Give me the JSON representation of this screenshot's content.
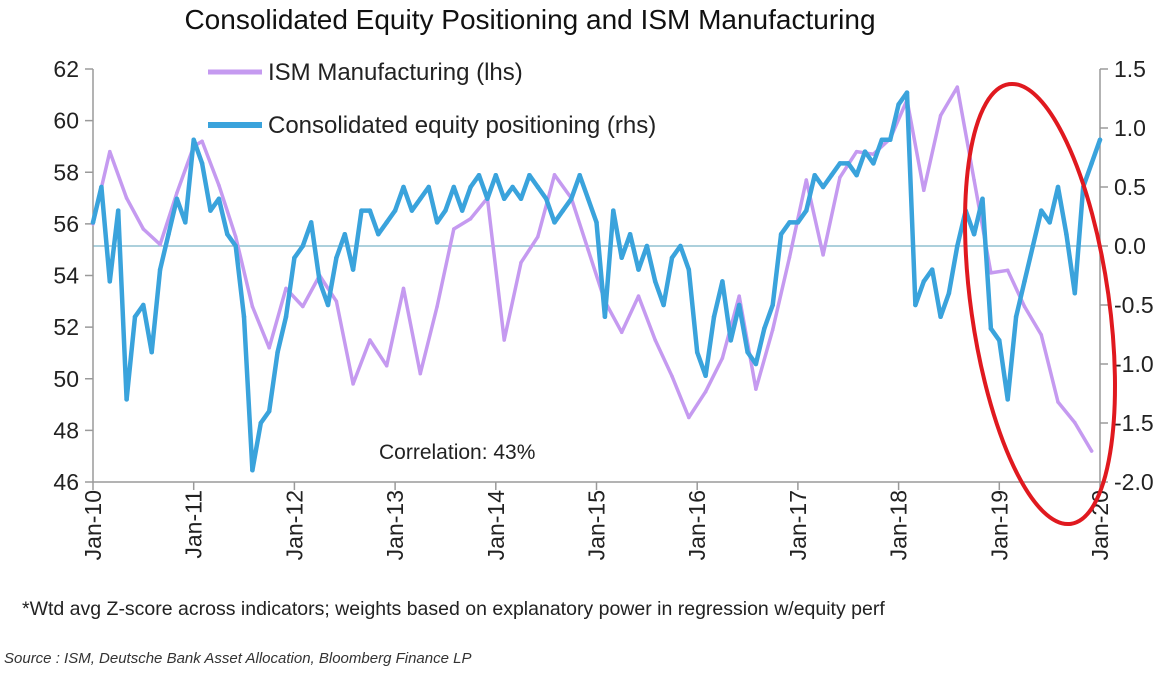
{
  "chart_data": {
    "type": "line",
    "title": "Consolidated Equity Positioning and ISM Manufacturing",
    "left_axis": {
      "min": 46,
      "max": 62,
      "ticks": [
        "62",
        "60",
        "58",
        "56",
        "54",
        "52",
        "50",
        "48",
        "46"
      ]
    },
    "right_axis": {
      "min": -2.0,
      "max": 1.5,
      "ticks": [
        "1.5",
        "1.0",
        "0.5",
        "0.0",
        "-0.5",
        "-1.0",
        "-1.5",
        "-2.0"
      ]
    },
    "x_ticks": [
      "Jan-10",
      "Jan-11",
      "Jan-12",
      "Jan-13",
      "Jan-14",
      "Jan-15",
      "Jan-16",
      "Jan-17",
      "Jan-18",
      "Jan-19",
      "Jan-20"
    ],
    "x_range": [
      "2010-01",
      "2020-01"
    ],
    "zero_line_rhs": 0.0,
    "legend_position": "top-left",
    "grid": false,
    "colors": {
      "ism": "#c59af0",
      "positioning": "#3aa3dc",
      "zero_line": "#7ab4c6",
      "highlight": "#e0191f",
      "axis": "#9a9a9a"
    },
    "annotation": "Correlation: 43%",
    "highlight_ellipse": "around 2019–2020 divergence",
    "series": [
      {
        "name": "ISM Manufacturing (lhs)",
        "axis": "left",
        "dates": [
          "2010-01",
          "2010-03",
          "2010-05",
          "2010-07",
          "2010-09",
          "2010-11",
          "2011-01",
          "2011-02",
          "2011-04",
          "2011-06",
          "2011-08",
          "2011-10",
          "2011-12",
          "2012-02",
          "2012-04",
          "2012-06",
          "2012-08",
          "2012-10",
          "2012-12",
          "2013-02",
          "2013-04",
          "2013-06",
          "2013-08",
          "2013-10",
          "2013-12",
          "2014-02",
          "2014-04",
          "2014-06",
          "2014-08",
          "2014-10",
          "2014-12",
          "2015-02",
          "2015-04",
          "2015-06",
          "2015-08",
          "2015-10",
          "2015-12",
          "2016-02",
          "2016-04",
          "2016-06",
          "2016-08",
          "2016-10",
          "2016-12",
          "2017-02",
          "2017-04",
          "2017-06",
          "2017-08",
          "2017-10",
          "2017-12",
          "2018-02",
          "2018-04",
          "2018-06",
          "2018-08",
          "2018-10",
          "2018-12",
          "2019-02",
          "2019-04",
          "2019-06",
          "2019-08",
          "2019-10",
          "2019-12"
        ],
        "values": [
          56.0,
          58.8,
          57.0,
          55.8,
          55.2,
          57.2,
          59.0,
          59.2,
          57.5,
          55.5,
          52.8,
          51.2,
          53.5,
          52.8,
          54.0,
          53.0,
          49.8,
          51.5,
          50.5,
          53.5,
          50.2,
          52.8,
          55.8,
          56.2,
          57.0,
          51.5,
          54.5,
          55.5,
          57.9,
          57.0,
          55.0,
          53.0,
          51.8,
          53.2,
          51.5,
          50.1,
          48.5,
          49.5,
          50.8,
          53.2,
          49.6,
          51.9,
          54.7,
          57.7,
          54.8,
          57.8,
          58.8,
          58.7,
          59.3,
          60.8,
          57.3,
          60.2,
          61.3,
          57.7,
          54.1,
          54.2,
          52.8,
          51.7,
          49.1,
          48.3,
          47.2
        ]
      },
      {
        "name": "Consolidated equity positioning (rhs)",
        "axis": "right",
        "dates": [
          "2010-01",
          "2010-02",
          "2010-03",
          "2010-04",
          "2010-05",
          "2010-06",
          "2010-07",
          "2010-08",
          "2010-09",
          "2010-10",
          "2010-11",
          "2010-12",
          "2011-01",
          "2011-02",
          "2011-03",
          "2011-04",
          "2011-05",
          "2011-06",
          "2011-07",
          "2011-08",
          "2011-09",
          "2011-10",
          "2011-11",
          "2011-12",
          "2012-01",
          "2012-02",
          "2012-03",
          "2012-04",
          "2012-05",
          "2012-06",
          "2012-07",
          "2012-08",
          "2012-09",
          "2012-10",
          "2012-11",
          "2012-12",
          "2013-01",
          "2013-02",
          "2013-03",
          "2013-04",
          "2013-05",
          "2013-06",
          "2013-07",
          "2013-08",
          "2013-09",
          "2013-10",
          "2013-11",
          "2013-12",
          "2014-01",
          "2014-02",
          "2014-03",
          "2014-04",
          "2014-05",
          "2014-06",
          "2014-07",
          "2014-08",
          "2014-09",
          "2014-10",
          "2014-11",
          "2014-12",
          "2015-01",
          "2015-02",
          "2015-03",
          "2015-04",
          "2015-05",
          "2015-06",
          "2015-07",
          "2015-08",
          "2015-09",
          "2015-10",
          "2015-11",
          "2015-12",
          "2016-01",
          "2016-02",
          "2016-03",
          "2016-04",
          "2016-05",
          "2016-06",
          "2016-07",
          "2016-08",
          "2016-09",
          "2016-10",
          "2016-11",
          "2016-12",
          "2017-01",
          "2017-02",
          "2017-03",
          "2017-04",
          "2017-05",
          "2017-06",
          "2017-07",
          "2017-08",
          "2017-09",
          "2017-10",
          "2017-11",
          "2017-12",
          "2018-01",
          "2018-02",
          "2018-03",
          "2018-04",
          "2018-05",
          "2018-06",
          "2018-07",
          "2018-08",
          "2018-09",
          "2018-10",
          "2018-11",
          "2018-12",
          "2019-01",
          "2019-02",
          "2019-03",
          "2019-04",
          "2019-05",
          "2019-06",
          "2019-07",
          "2019-08",
          "2019-09",
          "2019-10",
          "2019-11",
          "2019-12",
          "2020-01"
        ],
        "values": [
          0.2,
          0.5,
          -0.3,
          0.3,
          -1.3,
          -0.6,
          -0.5,
          -0.9,
          -0.2,
          0.1,
          0.4,
          0.2,
          0.9,
          0.7,
          0.3,
          0.4,
          0.1,
          0.0,
          -0.6,
          -1.9,
          -1.5,
          -1.4,
          -0.9,
          -0.6,
          -0.1,
          0.0,
          0.2,
          -0.3,
          -0.5,
          -0.1,
          0.1,
          -0.2,
          0.3,
          0.3,
          0.1,
          0.2,
          0.3,
          0.5,
          0.3,
          0.4,
          0.5,
          0.2,
          0.3,
          0.5,
          0.3,
          0.5,
          0.6,
          0.4,
          0.6,
          0.4,
          0.5,
          0.4,
          0.6,
          0.5,
          0.4,
          0.2,
          0.3,
          0.4,
          0.6,
          0.4,
          0.2,
          -0.6,
          0.3,
          -0.1,
          0.1,
          -0.2,
          0.0,
          -0.3,
          -0.5,
          -0.1,
          0.0,
          -0.2,
          -0.9,
          -1.1,
          -0.6,
          -0.3,
          -0.8,
          -0.5,
          -0.9,
          -1.0,
          -0.7,
          -0.5,
          0.1,
          0.2,
          0.2,
          0.3,
          0.6,
          0.5,
          0.6,
          0.7,
          0.7,
          0.6,
          0.8,
          0.7,
          0.9,
          0.9,
          1.2,
          1.3,
          -0.5,
          -0.3,
          -0.2,
          -0.6,
          -0.4,
          0.0,
          0.3,
          0.1,
          0.4,
          -0.7,
          -0.8,
          -1.3,
          -0.6,
          -0.3,
          0.0,
          0.3,
          0.2,
          0.5,
          0.1,
          -0.4,
          0.5,
          0.7,
          0.9
        ]
      }
    ]
  },
  "footnote": "*Wtd avg Z-score across indicators; weights based on explanatory power in regression w/equity perf",
  "source": "Source : ISM, Deutsche Bank Asset Allocation, Bloomberg Finance LP"
}
